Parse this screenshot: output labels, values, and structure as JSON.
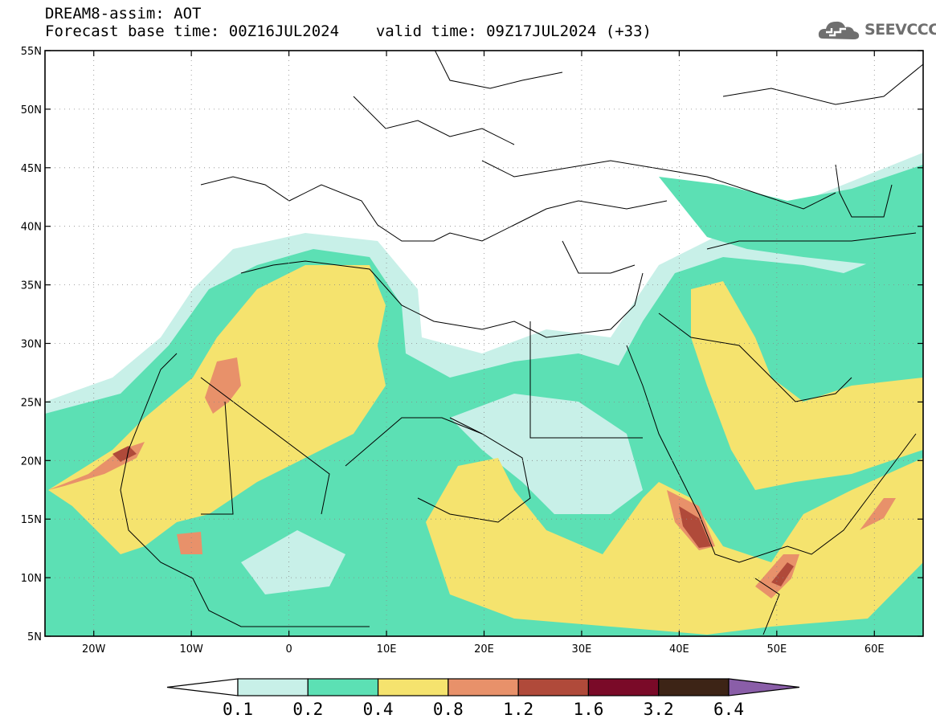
{
  "header": {
    "model_line": "DREAM8-assim: AOT",
    "base_time_line": "Forecast base time: 00Z16JUL2024",
    "valid_time_line": "valid time: 09Z17JUL2024 (+33)"
  },
  "logo": {
    "text": "SEEVCCC",
    "icon": "cloud-logo-icon"
  },
  "map": {
    "lat_range": [
      5,
      55
    ],
    "lon_range": [
      -25,
      65
    ],
    "lat_ticks": [
      {
        "value": 55,
        "label": "55N"
      },
      {
        "value": 50,
        "label": "50N"
      },
      {
        "value": 45,
        "label": "45N"
      },
      {
        "value": 40,
        "label": "40N"
      },
      {
        "value": 35,
        "label": "35N"
      },
      {
        "value": 30,
        "label": "30N"
      },
      {
        "value": 25,
        "label": "25N"
      },
      {
        "value": 20,
        "label": "20N"
      },
      {
        "value": 15,
        "label": "15N"
      },
      {
        "value": 10,
        "label": "10N"
      },
      {
        "value": 5,
        "label": "5N"
      }
    ],
    "lon_ticks": [
      {
        "value": -20,
        "label": "20W"
      },
      {
        "value": -10,
        "label": "10W"
      },
      {
        "value": 0,
        "label": "0"
      },
      {
        "value": 10,
        "label": "10E"
      },
      {
        "value": 20,
        "label": "20E"
      },
      {
        "value": 30,
        "label": "30E"
      },
      {
        "value": 40,
        "label": "40E"
      },
      {
        "value": 50,
        "label": "50E"
      },
      {
        "value": 60,
        "label": "60E"
      }
    ],
    "grid": "dotted"
  },
  "colorbar": {
    "levels": [
      "0.1",
      "0.2",
      "0.4",
      "0.8",
      "1.2",
      "1.6",
      "3.2",
      "6.4"
    ],
    "colors": [
      "#ffffff",
      "#c8f0e8",
      "#5ce0b4",
      "#f5e36e",
      "#e8916a",
      "#b04a3a",
      "#7a0a28",
      "#3d2416",
      "#8a5ea8"
    ]
  }
}
